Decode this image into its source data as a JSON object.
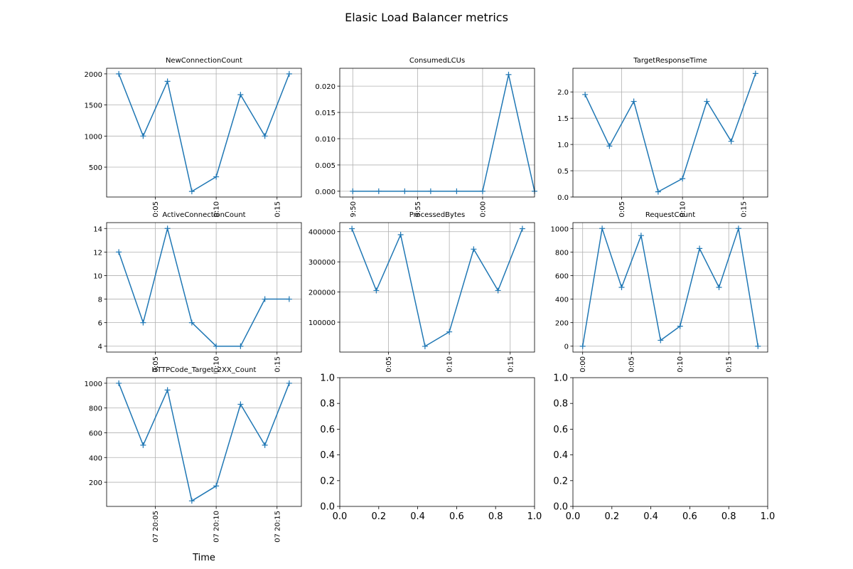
{
  "figure": {
    "title": "Elasic Load Balancer metrics"
  },
  "style": {
    "line_color": "#1f77b4",
    "grid_color": "#b0b0b0"
  },
  "chart_data": [
    {
      "type": "line",
      "title": "NewConnectionCount",
      "x": [
        "20:02",
        "20:04",
        "20:06",
        "20:08",
        "20:10",
        "20:12",
        "20:14",
        "20:16"
      ],
      "values": [
        2000,
        1000,
        1880,
        110,
        345,
        1665,
        1000,
        2000
      ],
      "ylim": [
        20,
        2090
      ],
      "yticks": [
        500,
        1000,
        1500,
        2000
      ],
      "ytick_labels": [
        "500",
        "1000",
        "1500",
        "2000"
      ],
      "xlim": [
        "20:01",
        "20:17"
      ],
      "xticks": [
        "20:05",
        "20:10",
        "20:15"
      ],
      "xtick_labels": [
        "0:05",
        "0:10",
        "0:15"
      ],
      "grid": true,
      "marker": "+"
    },
    {
      "type": "line",
      "title": "ConsumedLCUs",
      "x": [
        "19:50",
        "19:52",
        "19:54",
        "19:56",
        "19:58",
        "20:00",
        "20:02",
        "20:04"
      ],
      "values": [
        0,
        0,
        0,
        0,
        0,
        0,
        0.0222,
        0
      ],
      "ylim": [
        -0.0011,
        0.0234
      ],
      "yticks": [
        0,
        0.005,
        0.01,
        0.015,
        0.02
      ],
      "ytick_labels": [
        "0.000",
        "0.005",
        "0.010",
        "0.015",
        "0.020"
      ],
      "xlim": [
        "19:49",
        "20:04"
      ],
      "xticks": [
        "19:50",
        "19:55",
        "20:00"
      ],
      "xtick_labels": [
        "9:50",
        "9:55",
        "0:00"
      ],
      "grid": true,
      "marker": "+"
    },
    {
      "type": "line",
      "title": "TargetResponseTime",
      "x": [
        "20:02",
        "20:04",
        "20:06",
        "20:08",
        "20:10",
        "20:12",
        "20:14",
        "20:16"
      ],
      "values": [
        1.95,
        0.97,
        1.82,
        0.1,
        0.35,
        1.82,
        1.06,
        2.35
      ],
      "ylim": [
        0,
        2.45
      ],
      "yticks": [
        0,
        0.5,
        1,
        1.5,
        2
      ],
      "ytick_labels": [
        "0.0",
        "0.5",
        "1.0",
        "1.5",
        "2.0"
      ],
      "xlim": [
        "20:01",
        "20:17"
      ],
      "xticks": [
        "20:05",
        "20:10",
        "20:15"
      ],
      "xtick_labels": [
        "0:05",
        "0:10",
        "0:15"
      ],
      "grid": true,
      "marker": "+"
    },
    {
      "type": "line",
      "title": "ActiveConnectionCount",
      "x": [
        "20:02",
        "20:04",
        "20:06",
        "20:08",
        "20:10",
        "20:12",
        "20:14",
        "20:16"
      ],
      "values": [
        12,
        6,
        14,
        6,
        4,
        4,
        8,
        8
      ],
      "ylim": [
        3.5,
        14.5
      ],
      "yticks": [
        4,
        6,
        8,
        10,
        12,
        14
      ],
      "ytick_labels": [
        "4",
        "6",
        "8",
        "10",
        "12",
        "14"
      ],
      "xlim": [
        "20:01",
        "20:17"
      ],
      "xticks": [
        "20:05",
        "20:10",
        "20:15"
      ],
      "xtick_labels": [
        "0:05",
        "0:10",
        "0:15"
      ],
      "grid": true,
      "marker": "+"
    },
    {
      "type": "line",
      "title": "ProcessedBytes",
      "x": [
        "20:02",
        "20:04",
        "20:06",
        "20:08",
        "20:10",
        "20:12",
        "20:14",
        "20:16"
      ],
      "values": [
        410000,
        205000,
        390000,
        20000,
        68000,
        342000,
        205000,
        410000
      ],
      "ylim": [
        1000,
        430000
      ],
      "yticks": [
        100000,
        200000,
        300000,
        400000
      ],
      "ytick_labels": [
        "100000",
        "200000",
        "300000",
        "400000"
      ],
      "xlim": [
        "20:01",
        "20:17"
      ],
      "xticks": [
        "20:05",
        "20:10",
        "20:15"
      ],
      "xtick_labels": [
        "0:05",
        "0:10",
        "0:15"
      ],
      "grid": true,
      "marker": "+"
    },
    {
      "type": "line",
      "title": "RequestCount",
      "x": [
        "20:00",
        "20:02",
        "20:04",
        "20:06",
        "20:08",
        "20:10",
        "20:12",
        "20:14",
        "20:16",
        "20:18"
      ],
      "values": [
        0,
        1000,
        500,
        940,
        50,
        170,
        830,
        500,
        1000,
        0
      ],
      "ylim": [
        -50,
        1050
      ],
      "yticks": [
        0,
        200,
        400,
        600,
        800,
        1000
      ],
      "ytick_labels": [
        "0",
        "200",
        "400",
        "600",
        "800",
        "1000"
      ],
      "xlim": [
        "19:59",
        "20:19"
      ],
      "xticks": [
        "20:00",
        "20:05",
        "20:10",
        "20:15"
      ],
      "xtick_labels": [
        "0:00",
        "0:05",
        "0:10",
        "0:15"
      ],
      "grid": true,
      "marker": "+"
    },
    {
      "type": "line",
      "title": "HTTPCode_Target_2XX_Count",
      "xlabel": "Time",
      "x": [
        "20:02",
        "20:04",
        "20:06",
        "20:08",
        "20:10",
        "20:12",
        "20:14",
        "20:16"
      ],
      "values": [
        1000,
        500,
        945,
        50,
        170,
        830,
        500,
        1000
      ],
      "ylim": [
        5,
        1045
      ],
      "yticks": [
        200,
        400,
        600,
        800,
        1000
      ],
      "ytick_labels": [
        "200",
        "400",
        "600",
        "800",
        "1000"
      ],
      "xlim": [
        "20:01",
        "20:17"
      ],
      "xticks": [
        "20:05",
        "20:10",
        "20:15"
      ],
      "xtick_labels": [
        "07 20:05",
        "07 20:10",
        "07 20:15"
      ],
      "grid": true,
      "marker": "+"
    },
    {
      "type": "empty",
      "xlim": [
        0,
        1
      ],
      "ylim": [
        0,
        1
      ],
      "ticks": [
        0,
        0.2,
        0.4,
        0.6,
        0.8,
        1
      ],
      "tick_labels": [
        "0.0",
        "0.2",
        "0.4",
        "0.6",
        "0.8",
        "1.0"
      ]
    },
    {
      "type": "empty",
      "xlim": [
        0,
        1
      ],
      "ylim": [
        0,
        1
      ],
      "ticks": [
        0,
        0.2,
        0.4,
        0.6,
        0.8,
        1
      ],
      "tick_labels": [
        "0.0",
        "0.2",
        "0.4",
        "0.6",
        "0.8",
        "1.0"
      ]
    }
  ]
}
